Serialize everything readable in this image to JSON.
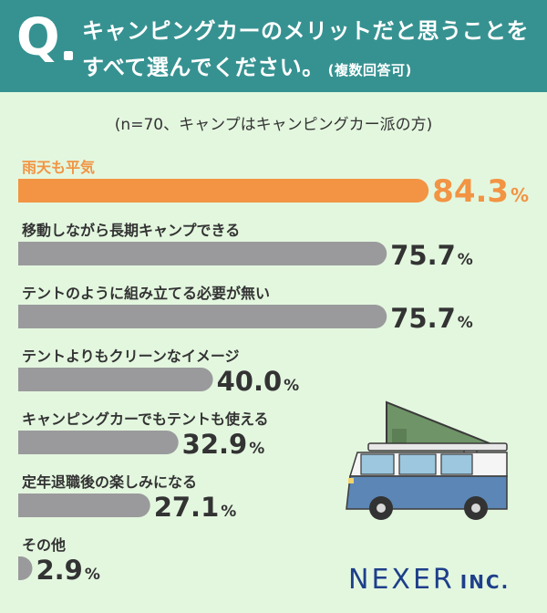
{
  "header": {
    "q_mark": "Q",
    "question_line1": "キャンピングカーのメリットだと思うことを",
    "question_line2": "すべて選んでください。",
    "question_note": "(複数回答可)"
  },
  "subtitle": "(n=70、キャンプはキャンピングカー派の方)",
  "chart_data": {
    "type": "bar",
    "orientation": "horizontal",
    "categories": [
      "雨天も平気",
      "移動しながら長期キャンプできる",
      "テントのように組み立てる必要が無い",
      "テントよりもクリーンなイメージ",
      "キャンピングカーでもテントも使える",
      "定年退職後の楽しみになる",
      "その他"
    ],
    "values": [
      84.3,
      75.7,
      75.7,
      40.0,
      32.9,
      27.1,
      2.9
    ],
    "value_labels": [
      "84.3",
      "75.7",
      "75.7",
      "40.0",
      "32.9",
      "27.1",
      "2.9"
    ],
    "unit": "%",
    "highlight_index": 0,
    "colors": {
      "highlight": "#f29443",
      "default": "#9a9a9c",
      "highlight_text": "#f29443",
      "text": "#333333"
    }
  },
  "logo": {
    "name": "NEXER",
    "suffix": "INC."
  },
  "colors": {
    "header_bg": "#369291",
    "page_bg": "#e3f7df",
    "logo": "#1e3f8a"
  }
}
